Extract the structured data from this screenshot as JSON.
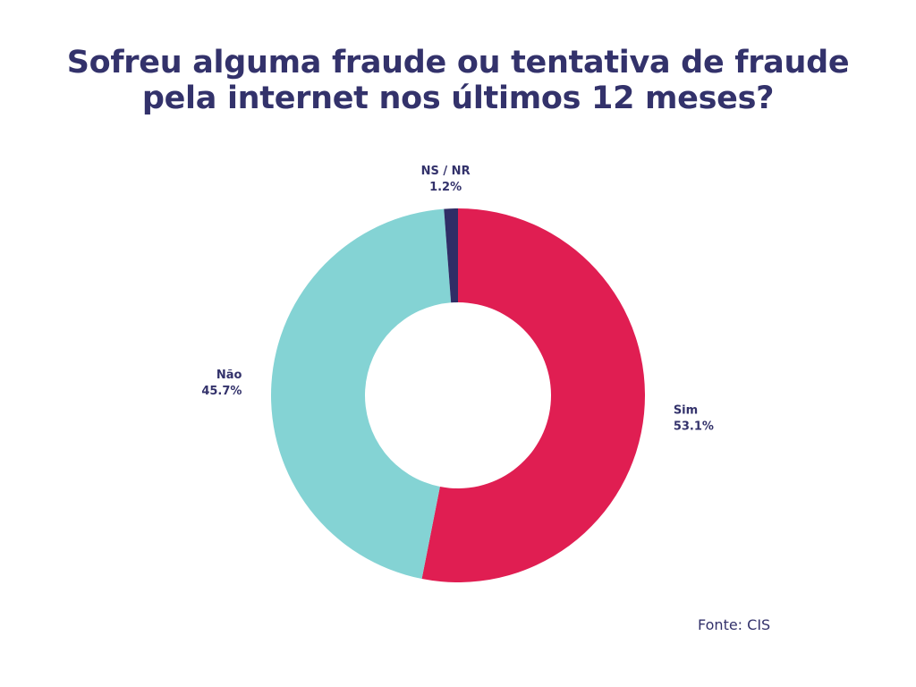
{
  "chart_data": {
    "type": "pie",
    "title_lines": [
      "Sofreu alguma fraude ou tentativa de fraude",
      "pela internet nos últimos 12 meses?"
    ],
    "slices": [
      {
        "name": "Sim",
        "value": 53.1,
        "label": "53.1%",
        "color": "#e01e52"
      },
      {
        "name": "Não",
        "value": 45.7,
        "label": "45.7%",
        "color": "#84d3d4"
      },
      {
        "name": "NS / NR",
        "value": 1.2,
        "label": "1.2%",
        "color": "#2f2d66"
      }
    ],
    "start_angle_deg": 0,
    "direction": "clockwise",
    "hole": true,
    "labels_outside": true,
    "legend": "none"
  },
  "source": "Fonte: CIS"
}
